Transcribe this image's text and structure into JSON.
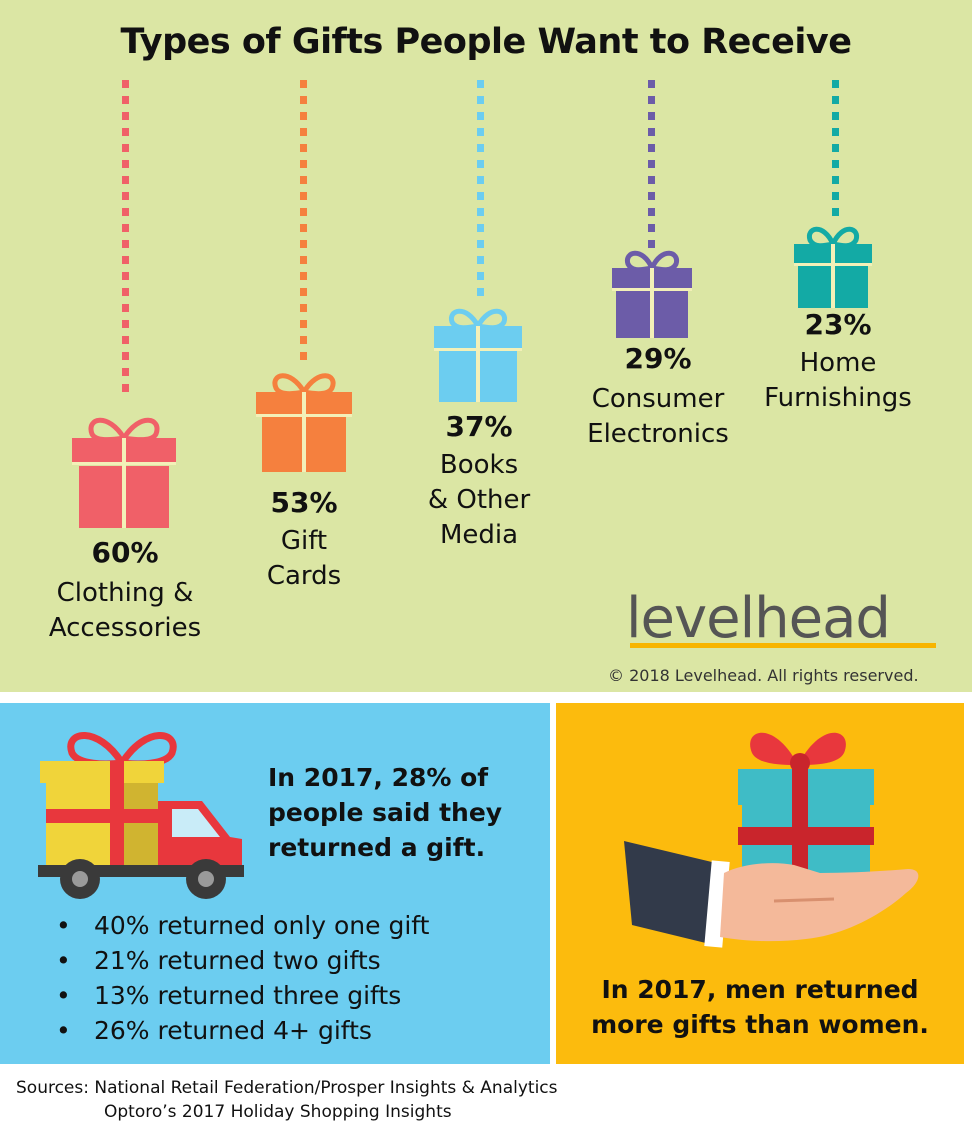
{
  "title": "Types of Gifts People Want to Receive",
  "gifts": [
    {
      "percent": "60%",
      "category": "Clothing &\nAccessories",
      "color": "#f06068"
    },
    {
      "percent": "53%",
      "category": "Gift\nCards",
      "color": "#f5803e"
    },
    {
      "percent": "37%",
      "category": "Books\n& Other\nMedia",
      "color": "#6ccdf0"
    },
    {
      "percent": "29%",
      "category": "Consumer\nElectronics",
      "color": "#6c5ca8"
    },
    {
      "percent": "23%",
      "category": "Home\nFurnishings",
      "color": "#13aaa5"
    }
  ],
  "brand": {
    "logo": "levelhead",
    "copyright": "© 2018 Levelhead.  All rights reserved."
  },
  "returns": {
    "headline": "In 2017, 28% of\npeople said they\nreturned a gift.",
    "bullet_symbol": "•",
    "bullets": [
      "40% returned only one gift",
      "21% returned two gifts",
      "13% returned three gifts",
      "26% returned 4+ gifts"
    ]
  },
  "men_returns": {
    "text": "In 2017, men returned\nmore gifts than women."
  },
  "sources": {
    "line1": "Sources: National Retail Federation/Prosper Insights & Analytics",
    "line2": "Optoro’s 2017 Holiday Shopping Insights"
  },
  "icons": [
    "gift-box-icon",
    "delivery-truck-icon",
    "hand-holding-gift-icon"
  ]
}
